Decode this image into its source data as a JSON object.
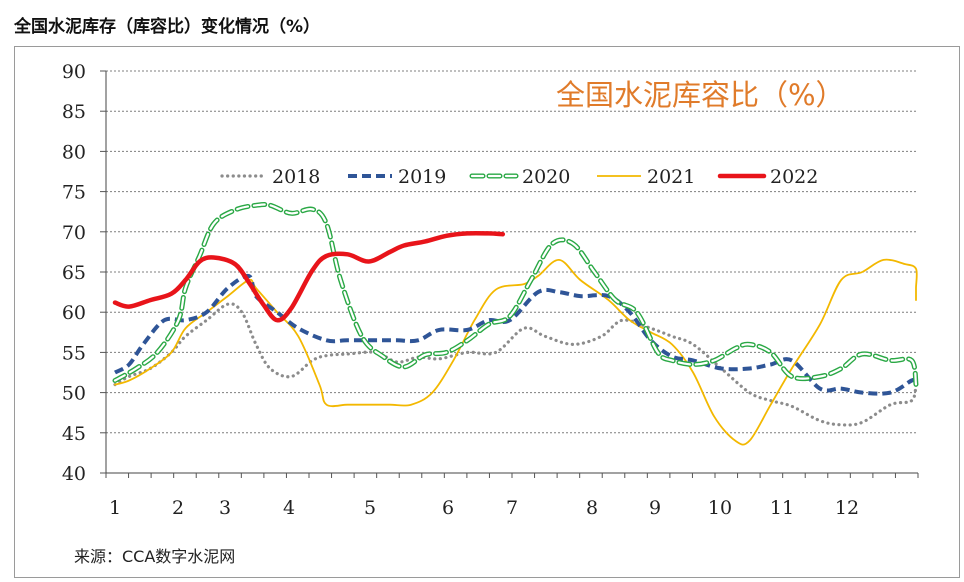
{
  "page": {
    "title": "全国水泥库存（库容比）变化情况（%）",
    "source": "来源：CCA数字水泥网"
  },
  "chart_data": {
    "type": "line",
    "title": "全国水泥库容比（%）",
    "title_color": "#e07b2a",
    "xlabel": "",
    "ylabel": "",
    "ylim": [
      40,
      90
    ],
    "yticks": [
      "40",
      "45",
      "50",
      "55",
      "60",
      "65",
      "70",
      "75",
      "80",
      "85",
      "90"
    ],
    "xlim": [
      1,
      13.1
    ],
    "xticks": [
      "1",
      "2",
      "3",
      "4",
      "5",
      "6",
      "7",
      "8",
      "9",
      "10",
      "11",
      "12"
    ],
    "grid": true,
    "legend_position": "top-center",
    "series": [
      {
        "name": "2018",
        "color": "#8c8c8c",
        "style": "dotted",
        "x": [
          1.0,
          1.2,
          1.5,
          1.8,
          2.0,
          2.3,
          2.6,
          2.8,
          3.0,
          3.2,
          3.5,
          3.8,
          4.0,
          4.3,
          4.7,
          5.0,
          5.3,
          5.6,
          6.0,
          6.4,
          6.8,
          7.1,
          7.5,
          7.9,
          8.2,
          8.6,
          8.9,
          9.2,
          9.6,
          10.0,
          10.3,
          10.6,
          11.0,
          11.3,
          11.6,
          12.0,
          12.3,
          12.7,
          13.1
        ],
        "y": [
          51,
          52,
          53,
          55,
          57,
          59,
          61,
          60,
          56,
          53,
          52,
          54,
          54.6,
          54.8,
          55,
          53.8,
          54.4,
          54.2,
          55,
          55,
          58,
          57,
          56,
          57,
          59,
          58,
          57,
          56,
          53,
          50,
          49,
          48.3,
          46.5,
          46,
          46.3,
          48.5,
          49,
          51,
          51
        ]
      },
      {
        "name": "2019",
        "color": "#2f5597",
        "style": "dashed",
        "x": [
          1.0,
          1.2,
          1.4,
          1.7,
          2.0,
          2.3,
          2.6,
          2.9,
          3.0,
          3.3,
          3.6,
          4.0,
          4.3,
          4.7,
          5.0,
          5.3,
          5.6,
          6.0,
          6.3,
          6.6,
          7.0,
          7.3,
          7.6,
          8.0,
          8.3,
          8.6,
          8.9,
          9.2,
          9.6,
          10.0,
          10.3,
          10.6,
          11.0,
          11.3,
          11.6,
          12.0,
          12.3,
          12.7,
          13.1
        ],
        "y": [
          52.5,
          53.5,
          56,
          59,
          59,
          60,
          63,
          64.5,
          62,
          60,
          58,
          56.5,
          56.5,
          56.5,
          56.5,
          56.5,
          57.8,
          57.8,
          59,
          59,
          62.5,
          62.5,
          62,
          62,
          60,
          56.5,
          54.5,
          54,
          53,
          53,
          53.5,
          54,
          50.5,
          50.5,
          50,
          50,
          51.5,
          51.5,
          51
        ]
      },
      {
        "name": "2020",
        "color": "#2aa845",
        "style": "longdash",
        "x": [
          1.0,
          1.3,
          1.6,
          1.9,
          2.0,
          2.2,
          2.4,
          2.7,
          3.0,
          3.2,
          3.5,
          3.8,
          4.0,
          4.2,
          4.5,
          4.8,
          5.1,
          5.4,
          5.7,
          6.0,
          6.3,
          6.6,
          6.9,
          7.2,
          7.5,
          7.8,
          8.1,
          8.4,
          8.7,
          8.9,
          9.2,
          9.5,
          9.8,
          10.0,
          10.3,
          10.6,
          11.0,
          11.3,
          11.6,
          12.0,
          12.3,
          12.6,
          13.0,
          13.1
        ],
        "y": [
          51.5,
          53,
          55,
          59,
          63,
          67,
          71,
          72.7,
          73.3,
          73.3,
          72.3,
          72.8,
          71,
          64,
          57,
          54.5,
          53.2,
          54.7,
          55,
          56.5,
          58.5,
          59.5,
          64,
          68.5,
          68.5,
          65,
          61.5,
          60,
          55,
          54,
          53.5,
          54,
          55.5,
          56,
          55,
          52,
          52,
          53,
          54.8,
          54,
          54,
          51,
          50.5,
          50.5
        ]
      },
      {
        "name": "2021",
        "color": "#f3b800",
        "style": "solid",
        "x": [
          1.0,
          1.2,
          1.5,
          1.8,
          2.0,
          2.3,
          2.6,
          2.9,
          3.0,
          3.3,
          3.6,
          3.9,
          4.0,
          4.3,
          4.6,
          4.9,
          5.2,
          5.5,
          5.8,
          6.1,
          6.4,
          6.8,
          7.0,
          7.3,
          7.6,
          8.0,
          8.3,
          8.6,
          8.9,
          9.2,
          9.5,
          9.8,
          10.0,
          10.3,
          10.6,
          11.0,
          11.3,
          11.6,
          11.9,
          12.2,
          12.5,
          12.8,
          13.1
        ],
        "y": [
          51,
          51.5,
          53,
          55,
          58,
          60,
          62,
          64,
          63,
          60,
          57,
          51,
          48.5,
          48.5,
          48.5,
          48.5,
          48.5,
          50,
          54,
          59,
          62.8,
          63.5,
          64.5,
          66.5,
          64,
          61.5,
          59,
          57.5,
          56,
          52.5,
          47,
          44,
          44,
          48.5,
          53,
          58.5,
          64,
          65,
          66.5,
          66,
          65.4,
          63,
          61.5
        ]
      },
      {
        "name": "2022",
        "color": "#e8141a",
        "style": "thick",
        "x": [
          1.0,
          1.2,
          1.5,
          1.8,
          2.0,
          2.2,
          2.4,
          2.7,
          2.9,
          3.1,
          3.3,
          3.5,
          3.8,
          4.0,
          4.3,
          4.6,
          4.9,
          5.1,
          5.4,
          5.7,
          6.0,
          6.3,
          6.5
        ],
        "y": [
          61.2,
          60.7,
          61.5,
          62.3,
          64,
          66.3,
          66.8,
          66,
          63.7,
          61,
          59,
          60.5,
          65.2,
          67,
          67.2,
          66.3,
          67.5,
          68.3,
          68.8,
          69.5,
          69.8,
          69.8,
          69.7
        ]
      }
    ]
  }
}
